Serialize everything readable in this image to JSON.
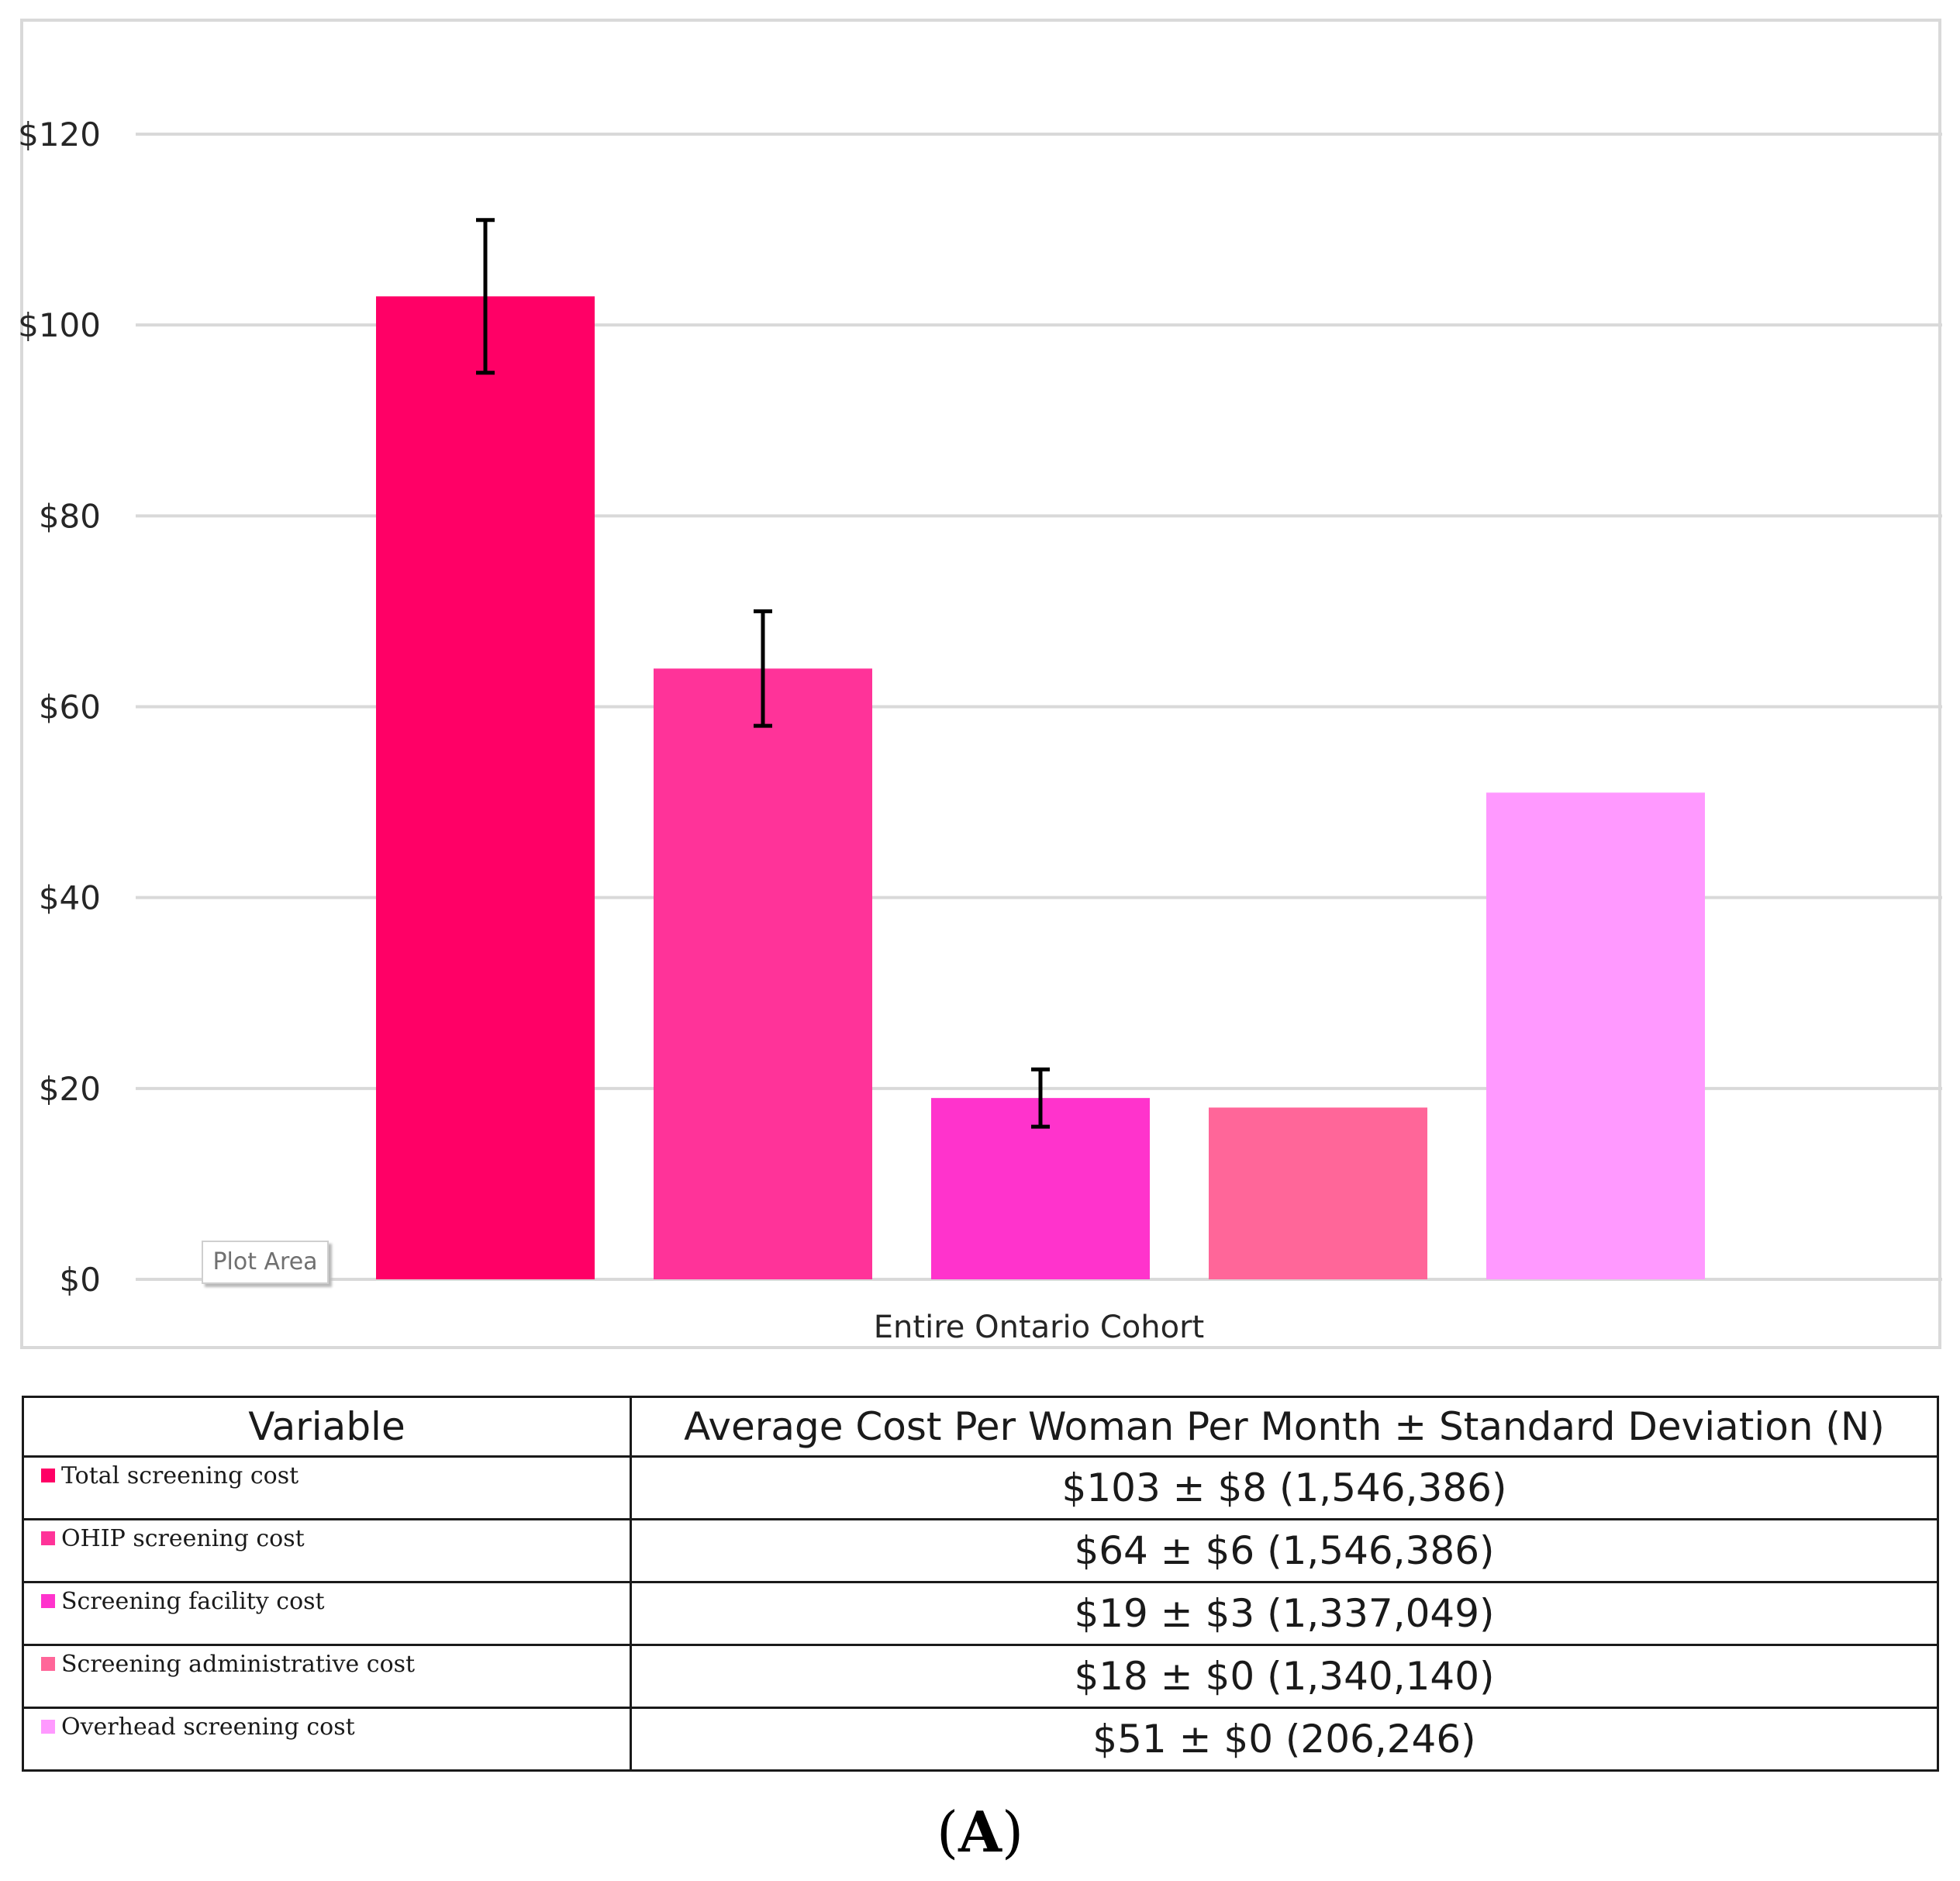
{
  "chart_data": {
    "type": "bar",
    "categories": [
      "Entire Ontario Cohort"
    ],
    "series": [
      {
        "name": "Total screening cost",
        "value": 103,
        "error": 8,
        "color": "#ff0066"
      },
      {
        "name": "OHIP screening cost",
        "value": 64,
        "error": 6,
        "color": "#ff3399"
      },
      {
        "name": "Screening facility cost",
        "value": 19,
        "error": 3,
        "color": "#ff33cc"
      },
      {
        "name": "Screening administrative cost",
        "value": 18,
        "error": 0,
        "color": "#ff6699"
      },
      {
        "name": "Overhead screening cost",
        "value": 51,
        "error": 0,
        "color": "#ff99ff"
      }
    ],
    "ylim": [
      0,
      120
    ],
    "yticks": [
      0,
      20,
      40,
      60,
      80,
      100,
      120
    ],
    "ytick_labels": [
      "$0",
      "$20",
      "$40",
      "$60",
      "$80",
      "$100",
      "$120"
    ],
    "xlabel": "Entire Ontario Cohort",
    "grid": true,
    "overlay_tag": "Plot Area"
  },
  "table": {
    "headers": [
      "Variable",
      "Average Cost Per Woman Per Month ± Standard Deviation (N)"
    ],
    "rows": [
      {
        "variable": "Total screening cost",
        "value": "$103 ± $8 (1,546,386)",
        "color": "#ff0066"
      },
      {
        "variable": "OHIP screening cost",
        "value": "$64 ± $6 (1,546,386)",
        "color": "#ff3399"
      },
      {
        "variable": "Screening facility cost",
        "value": "$19 ± $3 (1,337,049)",
        "color": "#ff33cc"
      },
      {
        "variable": "Screening administrative cost",
        "value": "$18 ± $0 (1,340,140)",
        "color": "#ff6699"
      },
      {
        "variable": "Overhead screening cost",
        "value": "$51 ± $0 (206,246)",
        "color": "#ff99ff"
      }
    ]
  },
  "panel_label": {
    "open": "(",
    "letter": "A",
    "close": ")"
  }
}
